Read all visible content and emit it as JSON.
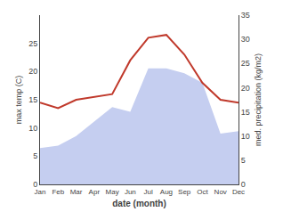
{
  "chart_data": {
    "type": "line",
    "categories": [
      "Jan",
      "Feb",
      "Mar",
      "Apr",
      "May",
      "Jun",
      "Jul",
      "Aug",
      "Sep",
      "Oct",
      "Nov",
      "Dec"
    ],
    "xlabel": "date (month)",
    "ylabel": "max temp (C)",
    "y2label": "med. precipitation (kg/m2)",
    "series": [
      {
        "type": "area",
        "axis": "y2",
        "color": "#c5cef0",
        "values": [
          7.5,
          8.0,
          10.0,
          13.0,
          16.0,
          15.0,
          24.0,
          24.0,
          23.0,
          21.0,
          10.5,
          11.0
        ]
      },
      {
        "type": "line",
        "color": "#c0392b",
        "values": [
          14.5,
          13.5,
          15.0,
          15.5,
          16.0,
          22.0,
          26.0,
          26.5,
          23.0,
          18.0,
          15.0,
          14.5
        ]
      }
    ],
    "ylim": [
      0,
      30
    ],
    "yticks": [
      0,
      5,
      10,
      15,
      20,
      25
    ],
    "y2lim": [
      0,
      35
    ],
    "y2ticks": [
      0,
      5,
      10,
      15,
      20,
      25,
      30,
      35
    ],
    "grid": false
  }
}
